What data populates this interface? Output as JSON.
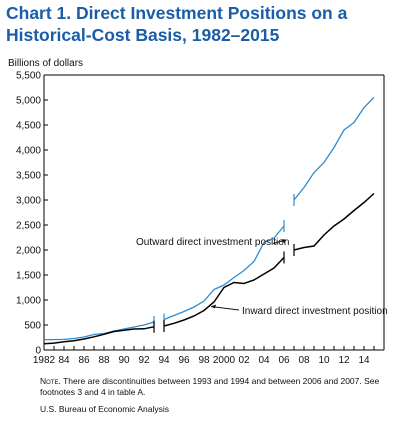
{
  "title_line1": "Chart 1. Direct Investment Positions on a",
  "title_line2": "Historical-Cost Basis, 1982–2015",
  "note_label": "Note.",
  "note_text": "There are discontinuities between 1993 and 1994 and between 2006 and 2007.  See footnotes 3 and 4 in table A.",
  "source": "U.S. Bureau of Economic Analysis",
  "colors": {
    "title": "#1a5da8",
    "outward": "#2f8ccf",
    "inward": "#000000"
  },
  "chart_data": {
    "type": "line",
    "ylabel": "Billions of dollars",
    "ylim": [
      0,
      5500
    ],
    "yticks": [
      0,
      500,
      1000,
      1500,
      2000,
      2500,
      3000,
      3500,
      4000,
      4500,
      5000,
      5500
    ],
    "xlim": [
      1982,
      2016
    ],
    "xticks": [
      1982,
      1984,
      1986,
      1988,
      1990,
      1992,
      1994,
      1996,
      1998,
      2000,
      2002,
      2004,
      2006,
      2008,
      2010,
      2012,
      2014
    ],
    "xticklabels": [
      "1982",
      "84",
      "86",
      "88",
      "90",
      "92",
      "94",
      "96",
      "98",
      "2000",
      "02",
      "04",
      "06",
      "08",
      "10",
      "12",
      "14"
    ],
    "discontinuities": [
      [
        1993,
        1994
      ],
      [
        2006,
        2007
      ]
    ],
    "series": [
      {
        "name": "Outward direct investment position",
        "color": "#2f8ccf",
        "x": [
          1982,
          1983,
          1984,
          1985,
          1986,
          1987,
          1988,
          1989,
          1990,
          1991,
          1992,
          1993,
          1994,
          1995,
          1996,
          1997,
          1998,
          1999,
          2000,
          2001,
          2002,
          2003,
          2004,
          2005,
          2006,
          2007,
          2008,
          2009,
          2010,
          2011,
          2012,
          2013,
          2014,
          2015
        ],
        "y": [
          207,
          207,
          212,
          230,
          260,
          310,
          330,
          380,
          420,
          460,
          500,
          560,
          610,
          690,
          770,
          860,
          980,
          1210,
          1300,
          1450,
          1590,
          1770,
          2150,
          2240,
          2480,
          3000,
          3250,
          3550,
          3750,
          4050,
          4400,
          4550,
          4850,
          5050
        ],
        "label_at": [
          1994,
          2100
        ]
      },
      {
        "name": "Inward direct investment position",
        "color": "#000000",
        "x": [
          1982,
          1983,
          1984,
          1985,
          1986,
          1987,
          1988,
          1989,
          1990,
          1991,
          1992,
          1993,
          1994,
          1995,
          1996,
          1997,
          1998,
          1999,
          2000,
          2001,
          2002,
          2003,
          2004,
          2005,
          2006,
          2007,
          2008,
          2009,
          2010,
          2011,
          2012,
          2013,
          2014,
          2015
        ],
        "y": [
          125,
          137,
          165,
          185,
          220,
          265,
          315,
          370,
          395,
          420,
          425,
          465,
          480,
          535,
          600,
          680,
          790,
          960,
          1250,
          1350,
          1330,
          1400,
          1520,
          1640,
          1850,
          2000,
          2050,
          2080,
          2300,
          2480,
          2620,
          2790,
          2950,
          3130
        ],
        "label_at": [
          2001,
          800
        ]
      }
    ]
  }
}
